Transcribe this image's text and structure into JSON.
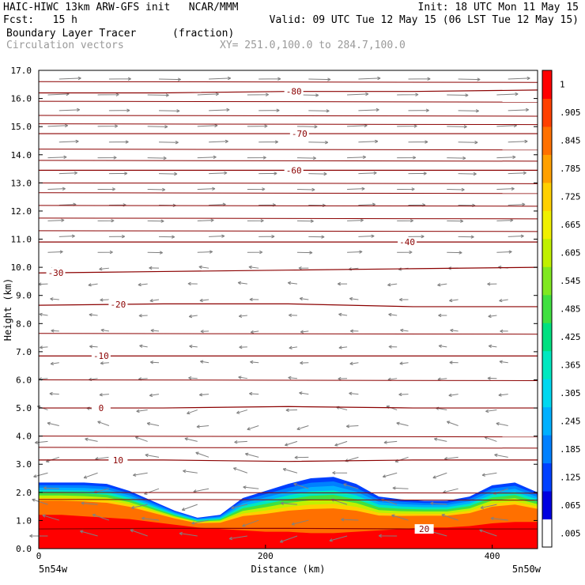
{
  "header": {
    "line1_left": "HAIC-HIWC 13km ARW-GFS init   NCAR/MMM",
    "line1_right": "Init: 18 UTC Mon 11 May 15",
    "line2_left": "Fcst:   15 h",
    "line2_right": "Valid: 09 UTC Tue 12 May 15 (06 LST Tue 12 May 15)",
    "field_name": "Boundary Layer Tracer",
    "field_units": "(fraction)",
    "overlay_name": "Circulation vectors",
    "xy_range": "XY= 251.0,100.0 to 284.7,100.0"
  },
  "chart_data": {
    "type": "heatmap",
    "xlabel": "Distance (km)",
    "ylabel": "Height (km)",
    "xlim": [
      0,
      440
    ],
    "ylim": [
      0,
      17
    ],
    "x_ticks": [
      0,
      200,
      400
    ],
    "y_ticks": [
      "0.0",
      "1.0",
      "2.0",
      "3.0",
      "4.0",
      "5.0",
      "6.0",
      "7.0",
      "8.0",
      "9.0",
      "10.0",
      "11.0",
      "12.0",
      "13.0",
      "14.0",
      "15.0",
      "16.0",
      "17.0"
    ],
    "x_end_labels": {
      "left": "5n54w",
      "right": "5n50w"
    },
    "colorbar": {
      "labels": [
        ".005",
        ".065",
        ".125",
        ".185",
        ".245",
        ".305",
        ".365",
        ".425",
        ".485",
        ".545",
        ".605",
        ".665",
        ".725",
        ".785",
        ".845",
        ".905",
        "1"
      ],
      "colors": [
        "#ffffff",
        "#0000e0",
        "#0040ff",
        "#0080ff",
        "#00b0ff",
        "#00d8f0",
        "#00e8c0",
        "#00e080",
        "#40e040",
        "#80e820",
        "#c0f000",
        "#f0f000",
        "#ffd000",
        "#ffa000",
        "#ff7000",
        "#ff4000",
        "#ff0000"
      ]
    },
    "tracer_top_profile": {
      "x": [
        0,
        20,
        40,
        60,
        80,
        100,
        120,
        140,
        160,
        180,
        200,
        220,
        240,
        260,
        280,
        300,
        320,
        340,
        360,
        380,
        400,
        420,
        440
      ],
      "top_km": [
        2.35,
        2.35,
        2.35,
        2.3,
        2.05,
        1.7,
        1.35,
        1.1,
        1.2,
        1.8,
        2.05,
        2.3,
        2.5,
        2.55,
        2.3,
        1.85,
        1.75,
        1.7,
        1.7,
        1.85,
        2.25,
        2.35,
        2.0
      ],
      "red_top_km": [
        1.2,
        1.2,
        1.15,
        1.1,
        1.05,
        0.95,
        0.85,
        0.75,
        0.7,
        0.65,
        0.6,
        0.6,
        0.55,
        0.55,
        0.6,
        0.65,
        0.7,
        0.75,
        0.75,
        0.8,
        0.9,
        0.95,
        0.95
      ]
    },
    "temperature_contours": [
      {
        "label": "20",
        "label_x": 340,
        "y": [
          0.7,
          0.72,
          0.72,
          0.7,
          0.7
        ]
      },
      {
        "label": "10",
        "label_x": 70,
        "y": [
          3.15,
          3.15,
          3.1,
          3.15,
          3.15
        ]
      },
      {
        "label": "0",
        "label_x": 55,
        "y": [
          5.0,
          5.0,
          5.05,
          5.0,
          5.0
        ]
      },
      {
        "label": "-10",
        "label_x": 55,
        "y": [
          6.85,
          6.85,
          6.85,
          6.85,
          6.85
        ]
      },
      {
        "label": "-20",
        "label_x": 70,
        "y": [
          8.65,
          8.7,
          8.7,
          8.6,
          8.6
        ]
      },
      {
        "label": "-30",
        "label_x": 15,
        "y": [
          9.8,
          9.85,
          9.9,
          9.95,
          10.0
        ]
      },
      {
        "label": "-40",
        "label_x": 325,
        "y": [
          10.9,
          10.9,
          10.9,
          10.9,
          10.9
        ]
      },
      {
        "label": "-60",
        "label_x": 225,
        "y": [
          13.45,
          13.45,
          13.45,
          13.45,
          13.45
        ]
      },
      {
        "label": "-70",
        "label_x": 230,
        "y": [
          14.75,
          14.75,
          14.75,
          14.75,
          14.75
        ]
      },
      {
        "label": "-80",
        "label_x": 225,
        "y": [
          16.2,
          16.2,
          16.25,
          16.25,
          16.3
        ]
      }
    ],
    "extra_contour_levels_km": [
      1.75,
      2.0,
      3.6,
      4.0,
      6.0,
      7.65,
      11.3,
      11.75,
      12.2,
      12.65,
      13.0,
      13.8,
      14.2,
      15.1,
      15.4,
      15.9,
      16.6
    ]
  }
}
